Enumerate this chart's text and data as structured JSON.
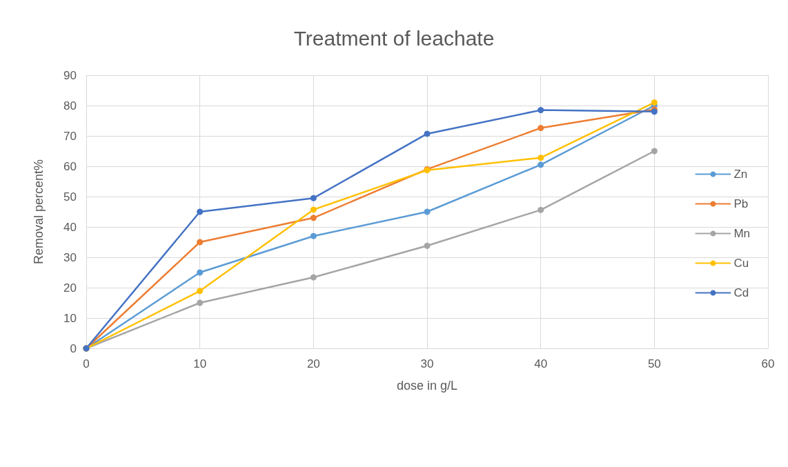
{
  "chart_data": {
    "type": "line",
    "title": "Treatment of leachate",
    "xlabel": "dose in g/L",
    "ylabel": "Removal percent%",
    "x": [
      0,
      10,
      20,
      30,
      40,
      50
    ],
    "series": [
      {
        "name": "Zn",
        "color": "#5b9bd5",
        "values": [
          0,
          25,
          37,
          45,
          60.5,
          80
        ]
      },
      {
        "name": "Pb",
        "color": "#ed7d31",
        "values": [
          0,
          35,
          43,
          59,
          72.6,
          78.7
        ]
      },
      {
        "name": "Mn",
        "color": "#a5a5a5",
        "values": [
          0,
          15,
          23.4,
          33.8,
          45.6,
          65
        ]
      },
      {
        "name": "Cu",
        "color": "#ffc000",
        "values": [
          0,
          18.9,
          45.7,
          58.7,
          62.8,
          81
        ]
      },
      {
        "name": "Cd",
        "color": "#4472c4",
        "values": [
          0,
          45,
          49.5,
          70.7,
          78.5,
          78
        ]
      }
    ],
    "xlim": [
      0,
      60
    ],
    "xticks": [
      0,
      10,
      20,
      30,
      40,
      50,
      60
    ],
    "ylim": [
      0,
      90
    ],
    "yticks": [
      0,
      10,
      20,
      30,
      40,
      50,
      60,
      70,
      80,
      90
    ],
    "grid": true,
    "legend": "right",
    "marker": "circle",
    "line_style": "solid"
  }
}
